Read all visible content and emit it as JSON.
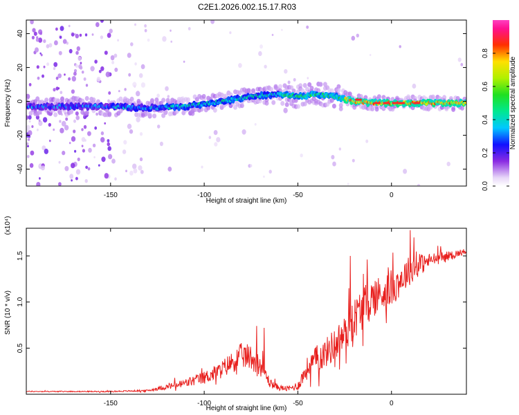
{
  "title": "C2E1.2026.002.15.17.R03",
  "chart_data": [
    {
      "type": "heatmap",
      "xlabel": "Height of straight line (km)",
      "ylabel": "Frequency (Hz)",
      "xlim": [
        -195,
        40
      ],
      "ylim": [
        -50,
        48
      ],
      "xticks": [
        -150,
        -100,
        -50,
        0
      ],
      "yticks": [
        -40,
        -20,
        0,
        20,
        40
      ],
      "ridge": {
        "x": [
          -195,
          -170,
          -150,
          -130,
          -110,
          -90,
          -75,
          -60,
          -50,
          -40,
          -30,
          -20,
          -10,
          0,
          10,
          20,
          40
        ],
        "freq_hz": [
          -3,
          -3,
          -3,
          -4,
          -3,
          0,
          3,
          4,
          3,
          4,
          3,
          0,
          -1,
          -1,
          -1,
          -1,
          -1
        ]
      },
      "colorbar": {
        "label": "Normalized spectral amplitude",
        "ticks": [
          0.0,
          0.2,
          0.4,
          0.6,
          0.8
        ],
        "range": [
          0,
          1
        ]
      }
    },
    {
      "type": "line",
      "xlabel": "Height of straight line (km)",
      "ylabel": "SNR (10 * v/v)",
      "scale_label": "(x10⁴)",
      "xlim": [
        -195,
        40
      ],
      "ylim": [
        0,
        1.8
      ],
      "xticks": [
        -150,
        -100,
        -50,
        0
      ],
      "yticks": [
        0.5,
        1.0,
        1.5
      ],
      "series": [
        {
          "name": "SNR",
          "color": "#e8201e",
          "envelope": {
            "x": [
              -195,
              -150,
              -130,
              -120,
              -110,
              -100,
              -92,
              -85,
              -80,
              -75,
              -72,
              -68,
              -65,
              -60,
              -55,
              -50,
              -45,
              -40,
              -35,
              -30,
              -25,
              -20,
              -15,
              -10,
              -5,
              0,
              5,
              10,
              15,
              20,
              30,
              40
            ],
            "mean": [
              0.03,
              0.03,
              0.04,
              0.08,
              0.12,
              0.18,
              0.25,
              0.35,
              0.42,
              0.4,
              0.35,
              0.25,
              0.12,
              0.07,
              0.06,
              0.09,
              0.28,
              0.38,
              0.45,
              0.55,
              0.65,
              0.82,
              0.95,
              1.05,
              1.1,
              1.15,
              1.25,
              1.35,
              1.4,
              1.45,
              1.5,
              1.55
            ],
            "amp": [
              0.005,
              0.006,
              0.01,
              0.03,
              0.05,
              0.07,
              0.09,
              0.12,
              0.14,
              0.14,
              0.12,
              0.09,
              0.05,
              0.03,
              0.03,
              0.05,
              0.12,
              0.15,
              0.16,
              0.18,
              0.2,
              0.22,
              0.24,
              0.22,
              0.2,
              0.2,
              0.18,
              0.16,
              0.12,
              0.08,
              0.05,
              0.03
            ]
          },
          "peaks": [
            {
              "x": -72,
              "y": 0.74
            },
            {
              "x": -68,
              "y": 0.72
            },
            {
              "x": -22,
              "y": 1.5
            },
            {
              "x": 10,
              "y": 1.78
            },
            {
              "x": 12,
              "y": 1.7
            },
            {
              "x": 15,
              "y": 1.52
            }
          ]
        }
      ]
    }
  ]
}
